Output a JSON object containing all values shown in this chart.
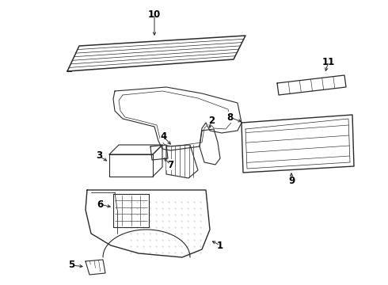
{
  "background_color": "#ffffff",
  "line_color": "#2a2a2a",
  "label_color": "#000000",
  "figsize": [
    4.9,
    3.6
  ],
  "dpi": 100,
  "label_fontsize": 8.5
}
